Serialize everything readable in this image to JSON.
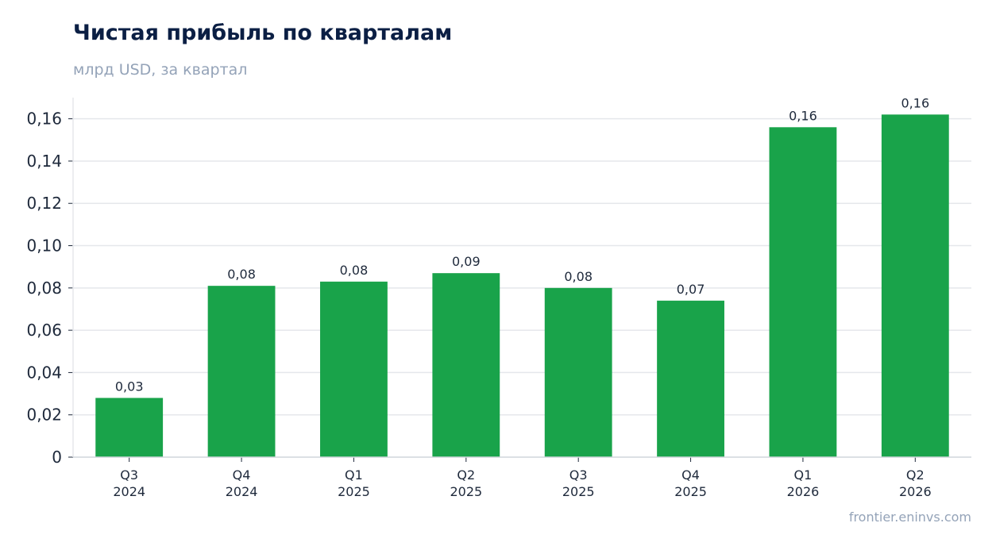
{
  "header": {
    "title": "Чистая прибыль по кварталам",
    "subtitle": "млрд USD, за квартал"
  },
  "footer": {
    "source": "frontier.eninvs.com"
  },
  "colors": {
    "bar": "#19a34a",
    "grid": "#e5e7eb",
    "axis": "#d1d5db",
    "title": "#0b1f44",
    "muted": "#94a3b8",
    "text": "#1e293b"
  },
  "chart_data": {
    "type": "bar",
    "categories": [
      [
        "Q3",
        "2024"
      ],
      [
        "Q4",
        "2024"
      ],
      [
        "Q1",
        "2025"
      ],
      [
        "Q2",
        "2025"
      ],
      [
        "Q3",
        "2025"
      ],
      [
        "Q4",
        "2025"
      ],
      [
        "Q1",
        "2026"
      ],
      [
        "Q2",
        "2026"
      ]
    ],
    "values": [
      0.028,
      0.081,
      0.083,
      0.087,
      0.08,
      0.074,
      0.156,
      0.162
    ],
    "data_labels": [
      "0,03",
      "0,08",
      "0,08",
      "0,09",
      "0,08",
      "0,07",
      "0,16",
      "0,16"
    ],
    "y_ticks": [
      0,
      0.02,
      0.04,
      0.06,
      0.08,
      0.1,
      0.12,
      0.14,
      0.16
    ],
    "y_tick_labels": [
      "0",
      "0,02",
      "0,04",
      "0,06",
      "0,08",
      "0,10",
      "0,12",
      "0,14",
      "0,16"
    ],
    "ylim": [
      0,
      0.17
    ],
    "grid": true,
    "legend": "none"
  }
}
